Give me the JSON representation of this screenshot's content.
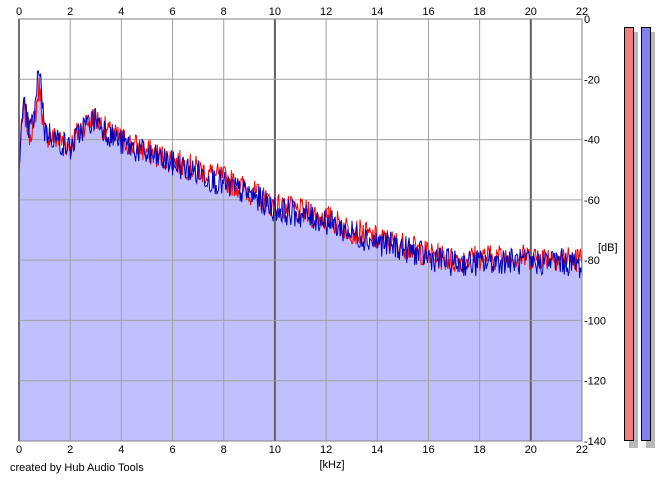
{
  "chart_data": {
    "type": "line",
    "xlabel": "[kHz]",
    "ylabel": "[dB]",
    "xlim": [
      0,
      22
    ],
    "ylim": [
      -140,
      0
    ],
    "xticks": [
      0,
      2,
      4,
      6,
      8,
      10,
      12,
      14,
      16,
      18,
      20,
      22
    ],
    "yticks": [
      0,
      -20,
      -40,
      -60,
      -80,
      -100,
      -120,
      -140
    ],
    "grid": true,
    "series": [
      {
        "color": "#ff0000",
        "x": [
          0,
          0.2,
          0.4,
          0.6,
          0.8,
          1.0,
          1.5,
          2.0,
          2.5,
          3.0,
          3.5,
          4.0,
          5.0,
          6.0,
          7.0,
          8.0,
          9.0,
          10.0,
          11.0,
          12.0,
          13.0,
          14.0,
          15.0,
          16.0,
          17.0,
          18.0,
          19.0,
          20.0,
          21.0,
          22.0
        ],
        "y": [
          -45,
          -30,
          -38,
          -34,
          -22,
          -38,
          -40,
          -42,
          -35,
          -33,
          -38,
          -40,
          -44,
          -47,
          -50,
          -53,
          -57,
          -62,
          -64,
          -66,
          -70,
          -73,
          -75,
          -78,
          -80,
          -79,
          -79,
          -79,
          -79,
          -80
        ]
      },
      {
        "color": "#0000c0",
        "x": [
          0,
          0.2,
          0.4,
          0.6,
          0.8,
          1.0,
          1.5,
          2.0,
          2.5,
          3.0,
          3.5,
          4.0,
          5.0,
          6.0,
          7.0,
          8.0,
          9.0,
          10.0,
          11.0,
          12.0,
          13.0,
          14.0,
          15.0,
          16.0,
          17.0,
          18.0,
          19.0,
          20.0,
          21.0,
          22.0
        ],
        "y": [
          -46,
          -29,
          -37,
          -33,
          -14,
          -37,
          -40,
          -43,
          -36,
          -33,
          -38,
          -41,
          -45,
          -48,
          -51,
          -55,
          -58,
          -63,
          -65,
          -67,
          -71,
          -74,
          -76,
          -79,
          -81,
          -81,
          -80,
          -81,
          -80,
          -82
        ]
      }
    ],
    "fill_color": "#c0c0ff"
  },
  "meters": [
    {
      "color": "#f08080"
    },
    {
      "color": "#8080f0"
    }
  ],
  "credit": "created by Hub Audio Tools"
}
